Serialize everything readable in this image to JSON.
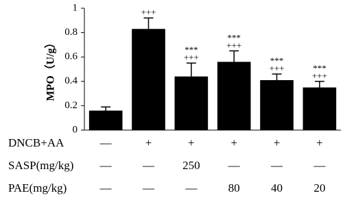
{
  "chart_data": {
    "type": "bar",
    "y_label": "MPO（U/g）",
    "values": [
      0.16,
      0.83,
      0.44,
      0.56,
      0.41,
      0.35
    ],
    "errors": [
      0.03,
      0.09,
      0.11,
      0.09,
      0.05,
      0.05
    ],
    "color": "#000000",
    "ylim": [
      0,
      1
    ],
    "yticks": [
      0,
      0.2,
      0.4,
      0.6,
      0.8,
      1
    ],
    "annotations": [
      null,
      [
        "+++"
      ],
      [
        "***",
        "+++"
      ],
      [
        "***",
        "+++"
      ],
      [
        "***",
        "+++"
      ],
      [
        "***",
        "+++"
      ]
    ],
    "table": {
      "rows": [
        {
          "label": "DNCB+AA",
          "cells": [
            "—",
            "+",
            "+",
            "+",
            "+",
            "+"
          ]
        },
        {
          "label": "SASP(mg/kg)",
          "cells": [
            "—",
            "—",
            "250",
            "—",
            "—",
            "—"
          ]
        },
        {
          "label": "PAE(mg/kg)",
          "cells": [
            "—",
            "—",
            "—",
            "80",
            "40",
            "20"
          ]
        }
      ]
    }
  }
}
